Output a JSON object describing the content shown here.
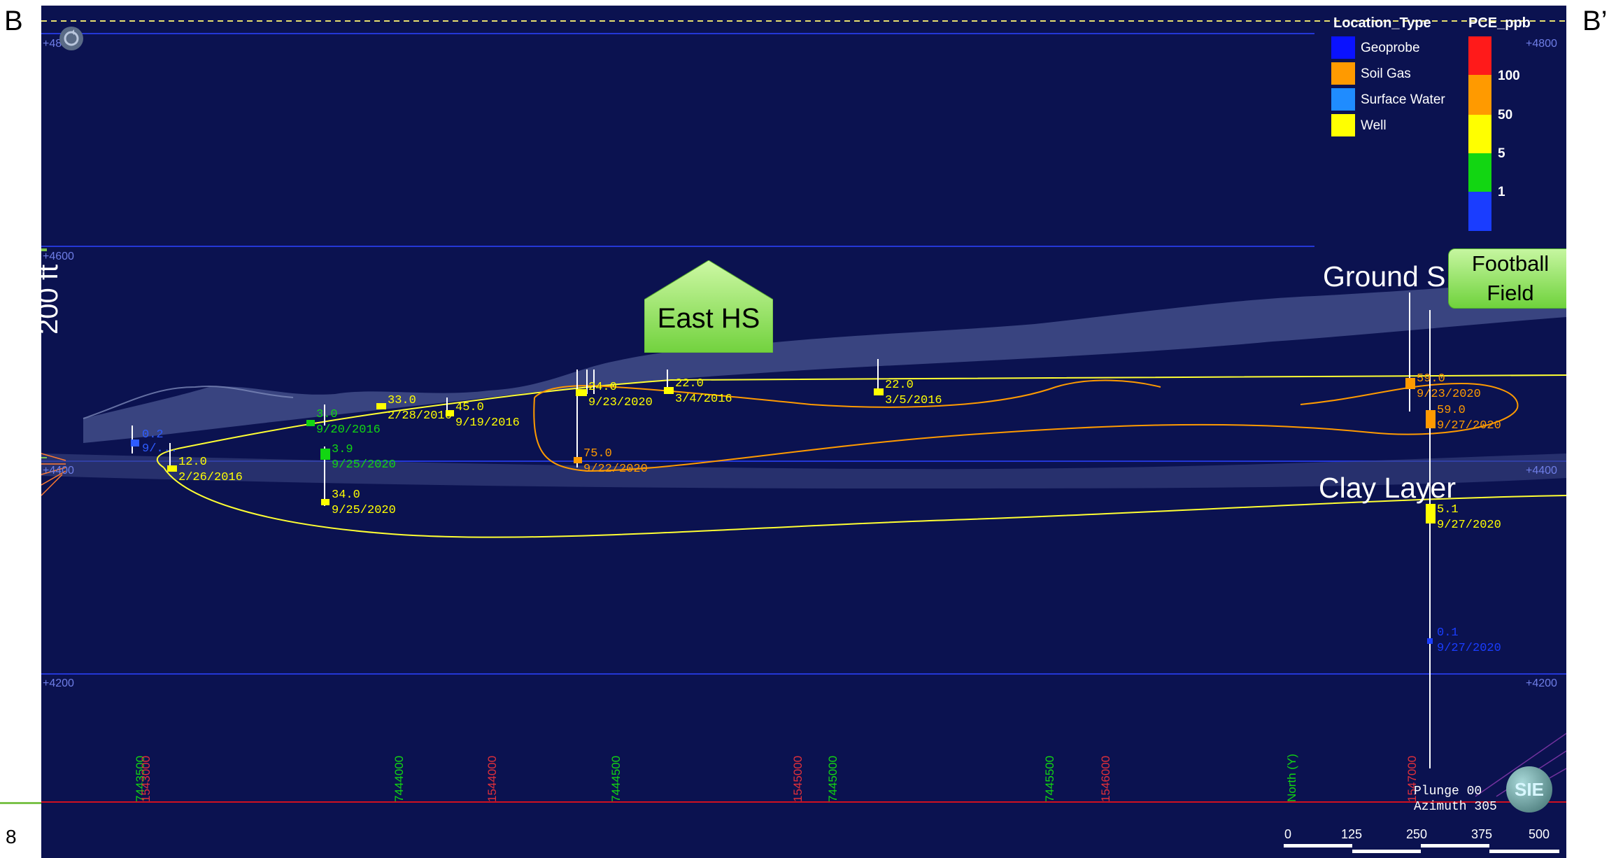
{
  "corners": {
    "left": "B",
    "right": "B’",
    "page_number": "8"
  },
  "scale_bar": {
    "labels": [
      "0",
      "125",
      "250",
      "375",
      "500"
    ]
  },
  "elevation_labels": [
    "+4800",
    "+4600",
    "+4400",
    "+4200"
  ],
  "scale_bracket_label": "200 ft",
  "legend": {
    "location_type_title": "Location_Type",
    "location_types": [
      {
        "label": "Geoprobe",
        "color": "#0a12ff"
      },
      {
        "label": "Soil Gas",
        "color": "#ff9a00"
      },
      {
        "label": "Surface Water",
        "color": "#1f8cff"
      },
      {
        "label": "Well",
        "color": "#ffff00"
      }
    ],
    "pce_title": "PCE_ppb",
    "colorbar": [
      {
        "color": "#ff1a1a"
      },
      {
        "color": "#ff9a00"
      },
      {
        "color": "#ffff00"
      },
      {
        "color": "#12d612"
      },
      {
        "color": "#1a3dff"
      }
    ],
    "colorbar_labels": [
      "100",
      "50",
      "5",
      "1"
    ]
  },
  "callouts": {
    "east_hs": "East HS",
    "ground_surface": "Ground S",
    "football_field_line1": "Football",
    "football_field_line2": "Field",
    "clay_layer": "Clay Layer"
  },
  "samples": [
    {
      "value": "0.2",
      "date": "9/...",
      "color": "#2e5cff"
    },
    {
      "value": "12.0",
      "date": "2/26/2016",
      "color": "#ffff00"
    },
    {
      "value": "3.0",
      "date": "9/20/2016",
      "color": "#12d612"
    },
    {
      "value": "33.0",
      "date": "2/28/2016",
      "color": "#ffff00"
    },
    {
      "value": "45.0",
      "date": "9/19/2016",
      "color": "#ffff00"
    },
    {
      "value": "3.9",
      "date": "9/25/2020",
      "color": "#12d612"
    },
    {
      "value": "34.0",
      "date": "9/25/2020",
      "color": "#ffff00"
    },
    {
      "value": "24.0",
      "date": "9/23/2020",
      "color": "#ffff00"
    },
    {
      "value": "22.0",
      "date": "3/4/2016",
      "color": "#ffff00"
    },
    {
      "value": "75.0",
      "date": "9/22/2020",
      "color": "#ff9a00"
    },
    {
      "value": "22.0",
      "date": "3/5/2016",
      "color": "#ffff00"
    },
    {
      "value": "59.0",
      "date": "9/23/2020",
      "color": "#ff9a00"
    },
    {
      "value": "59.0",
      "date": "9/27/2020",
      "color": "#ff9a00"
    },
    {
      "value": "5.1",
      "date": "9/27/2020",
      "color": "#ffff00"
    },
    {
      "value": "0.1",
      "date": "9/27/2020",
      "color": "#1a3dff"
    }
  ],
  "axis_ticks": {
    "north": [
      "7443500",
      "7444000",
      "7444500",
      "7445000",
      "7445500"
    ],
    "east": [
      "1543000",
      "1544000",
      "1545000",
      "1546000",
      "1547000"
    ],
    "north_axis_label": "North (Y)"
  },
  "view": {
    "plunge": "Plunge 00",
    "azimuth": "Azimuth 305"
  },
  "logo_text": "SIE"
}
